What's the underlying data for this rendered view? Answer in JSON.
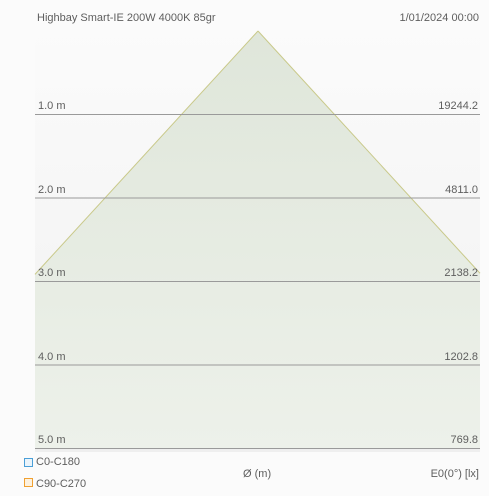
{
  "header": {
    "title": "Highbay Smart-IE 200W 4000K 85gr",
    "datetime": "1/01/2024 00:00"
  },
  "chart_data": {
    "type": "area",
    "title": "Highbay Smart-IE 200W 4000K 85gr",
    "beam_angle_deg": 85,
    "xlabel": "Ø (m)",
    "ylabel": "E0(0°) [lx]",
    "levels": [
      {
        "height_label": "1.0 m",
        "height": 1.0,
        "illuminance_label": "19244.2",
        "illuminance": 19244.2
      },
      {
        "height_label": "2.0 m",
        "height": 2.0,
        "illuminance_label": "4811.0",
        "illuminance": 4811.0
      },
      {
        "height_label": "3.0 m",
        "height": 3.0,
        "illuminance_label": "2138.2",
        "illuminance": 2138.2
      },
      {
        "height_label": "4.0 m",
        "height": 4.0,
        "illuminance_label": "1202.8",
        "illuminance": 1202.8
      },
      {
        "height_label": "5.0 m",
        "height": 5.0,
        "illuminance_label": "769.8",
        "illuminance": 769.8
      }
    ],
    "legend": [
      {
        "label": "C0-C180",
        "color": "#4a9fd8"
      },
      {
        "label": "C90-C270",
        "color": "#f0a030"
      }
    ],
    "colors": {
      "cone_fill": "#e6ece2",
      "cone_edge": "#c9c98a",
      "level_line": "#9a9a9a"
    }
  }
}
